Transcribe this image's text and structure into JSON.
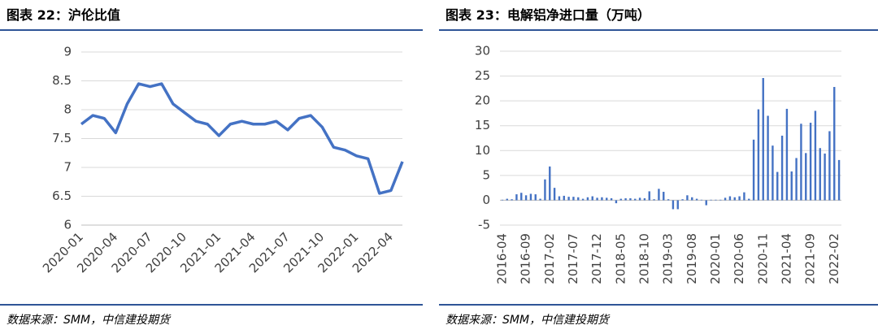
{
  "chart_data": [
    {
      "type": "line",
      "title": "图表 22：沪伦比值",
      "source": "数据来源：SMM，中信建投期货",
      "categories": [
        "2020-01",
        null,
        null,
        "2020-04",
        null,
        null,
        "2020-07",
        null,
        null,
        "2020-10",
        null,
        null,
        "2021-01",
        null,
        null,
        "2021-04",
        null,
        null,
        "2021-07",
        null,
        null,
        "2021-10",
        null,
        null,
        "2022-01",
        null,
        null,
        "2022-04",
        null
      ],
      "series": [
        {
          "name": "沪伦比值",
          "color": "#4472c4",
          "values": [
            7.75,
            7.9,
            7.85,
            7.6,
            8.1,
            8.45,
            8.4,
            8.45,
            8.1,
            7.95,
            7.8,
            7.75,
            7.55,
            7.75,
            7.8,
            7.75,
            7.75,
            7.8,
            7.65,
            7.85,
            7.9,
            7.7,
            7.35,
            7.3,
            7.2,
            7.15,
            6.55,
            6.6,
            7.1
          ]
        }
      ],
      "ylim": [
        6,
        9
      ],
      "yticks": [
        6,
        6.5,
        7,
        7.5,
        8,
        8.5,
        9
      ],
      "grid": true
    },
    {
      "type": "bar",
      "title": "图表 23：电解铝净进口量（万吨）",
      "source": "数据来源：SMM，中信建投期货",
      "categories": [
        "2016-04",
        null,
        null,
        null,
        null,
        "2016-09",
        null,
        null,
        null,
        null,
        "2017-02",
        null,
        null,
        null,
        null,
        "2017-07",
        null,
        null,
        null,
        null,
        "2017-12",
        null,
        null,
        null,
        null,
        "2018-05",
        null,
        null,
        null,
        null,
        "2018-10",
        null,
        null,
        null,
        null,
        "2019-03",
        null,
        null,
        null,
        null,
        "2019-08",
        null,
        null,
        null,
        null,
        "2020-01",
        null,
        null,
        null,
        null,
        "2020-06",
        null,
        null,
        null,
        null,
        "2020-11",
        null,
        null,
        null,
        null,
        "2021-04",
        null,
        null,
        null,
        null,
        "2021-09",
        null,
        null,
        null,
        null,
        "2022-02",
        null
      ],
      "series": [
        {
          "name": "电解铝净进口量",
          "color": "#4472c4",
          "values": [
            0.1,
            0.3,
            0.2,
            1.2,
            1.5,
            1.0,
            1.3,
            1.2,
            0.3,
            4.2,
            6.8,
            2.5,
            0.8,
            0.9,
            0.7,
            0.7,
            0.6,
            0.3,
            0.6,
            0.8,
            0.5,
            0.6,
            0.5,
            0.4,
            -0.6,
            0.3,
            0.4,
            0.4,
            0.3,
            0.5,
            0.4,
            1.8,
            0.2,
            2.3,
            1.7,
            0.2,
            -1.8,
            -1.8,
            0.2,
            1.0,
            0.6,
            0.3,
            0.1,
            -1.0,
            0.1,
            0.1,
            0.1,
            0.5,
            0.8,
            0.6,
            0.8,
            1.6,
            0.3,
            12.2,
            18.3,
            24.6,
            17.0,
            11.0,
            5.7,
            13.0,
            18.4,
            5.8,
            8.5,
            15.4,
            9.5,
            15.6,
            18.0,
            10.5,
            9.4,
            13.9,
            22.8,
            8.1
          ]
        }
      ],
      "ylim": [
        -5,
        30
      ],
      "yticks": [
        -5,
        0,
        5,
        10,
        15,
        20,
        25,
        30
      ],
      "grid": true
    }
  ]
}
